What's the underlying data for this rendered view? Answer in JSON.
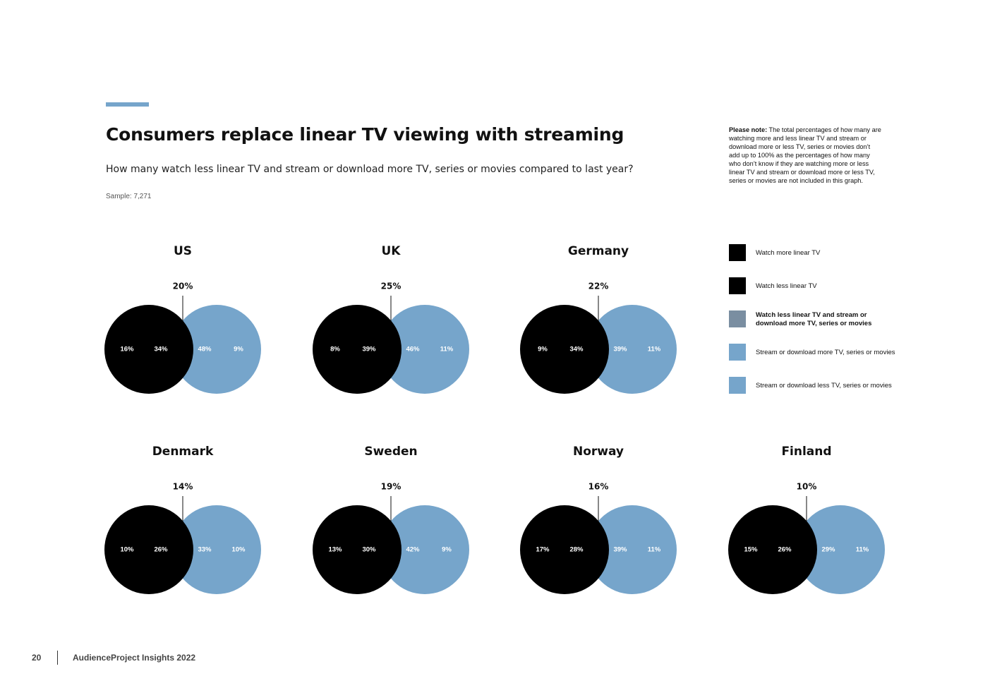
{
  "header": {
    "title": "Consumers replace linear TV viewing with streaming",
    "subtitle": "How many watch less linear TV and stream or download more TV, series or movies compared to last year?",
    "sample": "Sample: 7,271"
  },
  "note": {
    "label": "Please note:",
    "text": "The total percentages of how many are watching more and less linear TV and stream or download more or less TV, series or movies don’t add up to 100% as the percentages of how many who don’t know if they are watching more or less linear TV and stream or download more or less TV, series or movies are not included in this graph."
  },
  "legend": [
    {
      "label": "Watch more linear TV",
      "color": "#000000",
      "bold": false
    },
    {
      "label": "Watch less linear TV",
      "color": "#000000",
      "bold": false
    },
    {
      "label": "Watch less linear TV and stream or download more TV, series or movies",
      "color": "#7a8ea1",
      "bold": true
    },
    {
      "label": "Stream or download more TV, series or movies",
      "color": "#76a5cb",
      "bold": false
    },
    {
      "label": "Stream or download less TV, series or movies",
      "color": "#76a5cb",
      "bold": false
    }
  ],
  "colors": {
    "linear": "#000000",
    "streaming": "#76a5cb",
    "accent": "#76a5cb"
  },
  "chart_data": {
    "type": "venn",
    "series_names": [
      "Watch more linear TV",
      "Watch less linear TV",
      "Watch less linear TV and stream or download more TV, series or movies",
      "Stream or download more TV, series or movies",
      "Stream or download less TV, series or movies"
    ],
    "countries": [
      {
        "name": "US",
        "overlap": "20%",
        "more_linear": "16%",
        "less_linear": "34%",
        "more_stream": "48%",
        "less_stream": "9%"
      },
      {
        "name": "UK",
        "overlap": "25%",
        "more_linear": "8%",
        "less_linear": "39%",
        "more_stream": "46%",
        "less_stream": "11%"
      },
      {
        "name": "Germany",
        "overlap": "22%",
        "more_linear": "9%",
        "less_linear": "34%",
        "more_stream": "39%",
        "less_stream": "11%"
      },
      {
        "name": "Denmark",
        "overlap": "14%",
        "more_linear": "10%",
        "less_linear": "26%",
        "more_stream": "33%",
        "less_stream": "10%"
      },
      {
        "name": "Sweden",
        "overlap": "19%",
        "more_linear": "13%",
        "less_linear": "30%",
        "more_stream": "42%",
        "less_stream": "9%"
      },
      {
        "name": "Norway",
        "overlap": "16%",
        "more_linear": "17%",
        "less_linear": "28%",
        "more_stream": "39%",
        "less_stream": "11%"
      },
      {
        "name": "Finland",
        "overlap": "10%",
        "more_linear": "15%",
        "less_linear": "26%",
        "more_stream": "29%",
        "less_stream": "11%"
      }
    ]
  },
  "footer": {
    "page_number": "20",
    "title": "AudienceProject Insights 2022"
  }
}
